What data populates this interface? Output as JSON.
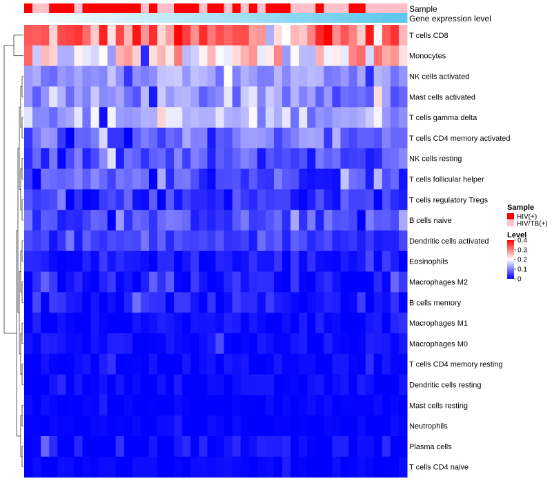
{
  "chart_data": {
    "type": "heatmap",
    "title": "",
    "rows": [
      "T cells CD8",
      "Monocytes",
      "NK cells activated",
      "Mast cells activated",
      "T cells gamma delta",
      "T cells CD4 memory activated",
      "NK cells resting",
      "T cells follicular helper",
      "T cells regulatory  Tregs",
      "B cells naive",
      "Dendritic cells activated",
      "Eosinophils",
      "Macrophages M2",
      "B cells memory",
      "Macrophages M1",
      "Macrophages M0",
      "T cells CD4 memory resting",
      "Dendritic cells resting",
      "Mast cells resting",
      "Neutrophils",
      "Plasma cells",
      "T cells CD4 naive"
    ],
    "n_samples": 46,
    "annotation_tracks": [
      "Sample",
      "Gene expression level"
    ],
    "sample_groups": [
      "HIV(+)",
      "HIV/TB(+)",
      "HIV/TB(+)",
      "HIV(+)",
      "HIV(+)",
      "HIV(+)",
      "HIV/TB(+)",
      "HIV(+)",
      "HIV(+)",
      "HIV(+)",
      "HIV(+)",
      "HIV(+)",
      "HIV(+)",
      "HIV(+)",
      "HIV/TB(+)",
      "HIV(+)",
      "HIV/TB(+)",
      "HIV/TB(+)",
      "HIV(+)",
      "HIV(+)",
      "HIV(+)",
      "HIV/TB(+)",
      "HIV(+)",
      "HIV(+)",
      "HIV/TB(+)",
      "HIV(+)",
      "HIV/TB(+)",
      "HIV(+)",
      "HIV/TB(+)",
      "HIV(+)",
      "HIV(+)",
      "HIV(+)",
      "HIV/TB(+)",
      "HIV/TB(+)",
      "HIV/TB(+)",
      "HIV(+)",
      "HIV/TB(+)",
      "HIV/TB(+)",
      "HIV/TB(+)",
      "HIV(+)",
      "HIV(+)",
      "HIV/TB(+)",
      "HIV/TB(+)",
      "HIV/TB(+)",
      "HIV/TB(+)",
      "HIV/TB(+)"
    ],
    "expression_gradient": {
      "low_color": "#ffffff",
      "high_color": "#5bc7ec"
    },
    "sample_legend": {
      "title": "Sample",
      "entries": [
        {
          "label": "HIV(+)",
          "color": "#ff0000"
        },
        {
          "label": "HIV/TB(+)",
          "color": "#ffc0cb"
        }
      ]
    },
    "level_legend": {
      "title": "Level",
      "ticks": [
        0.4,
        0.3,
        0.2,
        0.1,
        0
      ],
      "range": [
        0,
        0.4
      ],
      "colors": {
        "low": "#0000ff",
        "mid": "#ffffff",
        "high": "#ff0000"
      },
      "mid_value": 0.2
    },
    "row_profiles": [
      {
        "base": 0.3,
        "spread": 0.1
      },
      {
        "base": 0.22,
        "spread": 0.1
      },
      {
        "base": 0.12,
        "spread": 0.04
      },
      {
        "base": 0.11,
        "spread": 0.05
      },
      {
        "base": 0.14,
        "spread": 0.06
      },
      {
        "base": 0.09,
        "spread": 0.05
      },
      {
        "base": 0.06,
        "spread": 0.05
      },
      {
        "base": 0.06,
        "spread": 0.05
      },
      {
        "base": 0.04,
        "spread": 0.04
      },
      {
        "base": 0.06,
        "spread": 0.04
      },
      {
        "base": 0.05,
        "spread": 0.03
      },
      {
        "base": 0.02,
        "spread": 0.03
      },
      {
        "base": 0.02,
        "spread": 0.03
      },
      {
        "base": 0.02,
        "spread": 0.03
      },
      {
        "base": 0.01,
        "spread": 0.02
      },
      {
        "base": 0.01,
        "spread": 0.02
      },
      {
        "base": 0.005,
        "spread": 0.015
      },
      {
        "base": 0.005,
        "spread": 0.015
      },
      {
        "base": 0.002,
        "spread": 0.01
      },
      {
        "base": 0.002,
        "spread": 0.01
      },
      {
        "base": 0.01,
        "spread": 0.03
      },
      {
        "base": 0.003,
        "spread": 0.01
      }
    ]
  }
}
